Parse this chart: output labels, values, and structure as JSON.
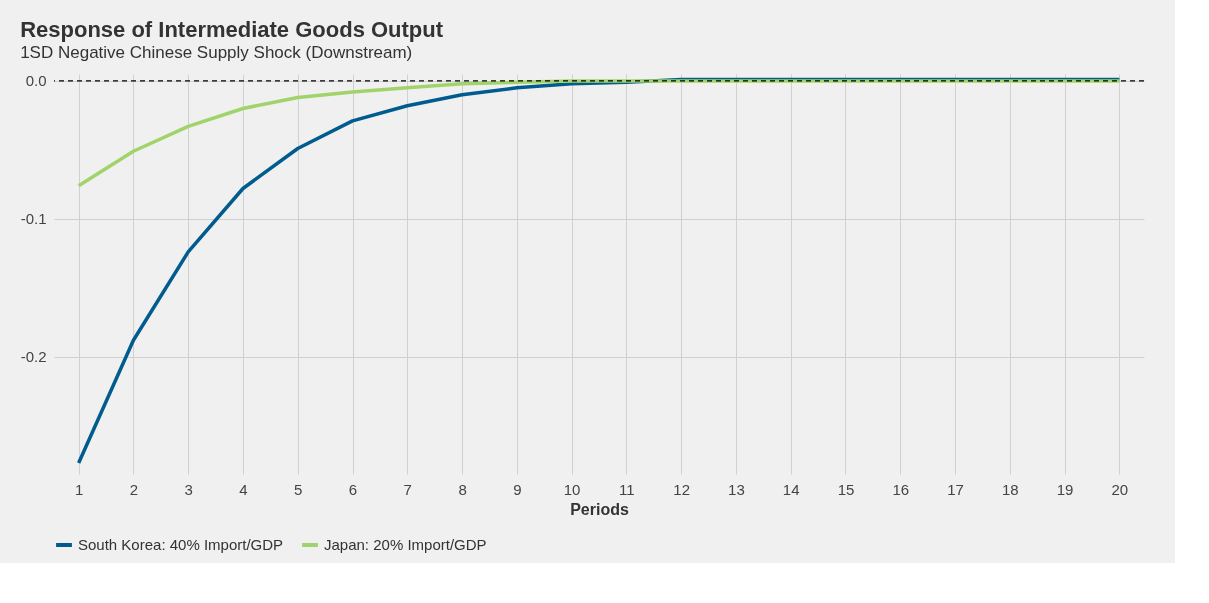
{
  "chart_data": {
    "type": "line",
    "title": "Response of Intermediate Goods Output",
    "subtitle": "1SD Negative Chinese Supply Shock (Downstream)",
    "xlabel": "Periods",
    "x": [
      1,
      2,
      3,
      4,
      5,
      6,
      7,
      8,
      9,
      10,
      11,
      12,
      13,
      14,
      15,
      16,
      17,
      18,
      19,
      20
    ],
    "series": [
      {
        "name": "South Korea: 40% Import/GDP",
        "color": "#005b8e",
        "values": [
          -0.277,
          -0.188,
          -0.124,
          -0.078,
          -0.049,
          -0.029,
          -0.018,
          -0.01,
          -0.005,
          -0.002,
          -0.001,
          0.001,
          0.001,
          0.001,
          0.001,
          0.001,
          0.001,
          0.001,
          0.001,
          0.001
        ]
      },
      {
        "name": "Japan: 20% Import/GDP",
        "color": "#a0d46a",
        "values": [
          -0.076,
          -0.051,
          -0.033,
          -0.02,
          -0.012,
          -0.008,
          -0.005,
          -0.002,
          -0.001,
          0,
          0,
          0,
          0,
          0,
          0,
          0,
          0,
          0,
          0,
          0
        ]
      }
    ],
    "xlim": [
      0.55,
      20.45
    ],
    "ylim": [
      -0.285,
      0.005
    ],
    "xticks": [
      1,
      2,
      3,
      4,
      5,
      6,
      7,
      8,
      9,
      10,
      11,
      12,
      13,
      14,
      15,
      16,
      17,
      18,
      19,
      20
    ],
    "yticks": [
      -0.2,
      -0.1,
      {
        "value": 0,
        "label": "0.0"
      }
    ],
    "ref_lines": [
      {
        "axis": "y",
        "value": 0,
        "color": "#000000",
        "line_style": "dashed"
      }
    ],
    "grid": true,
    "legend": "bottom",
    "line_style": "solid",
    "marker": "none"
  }
}
